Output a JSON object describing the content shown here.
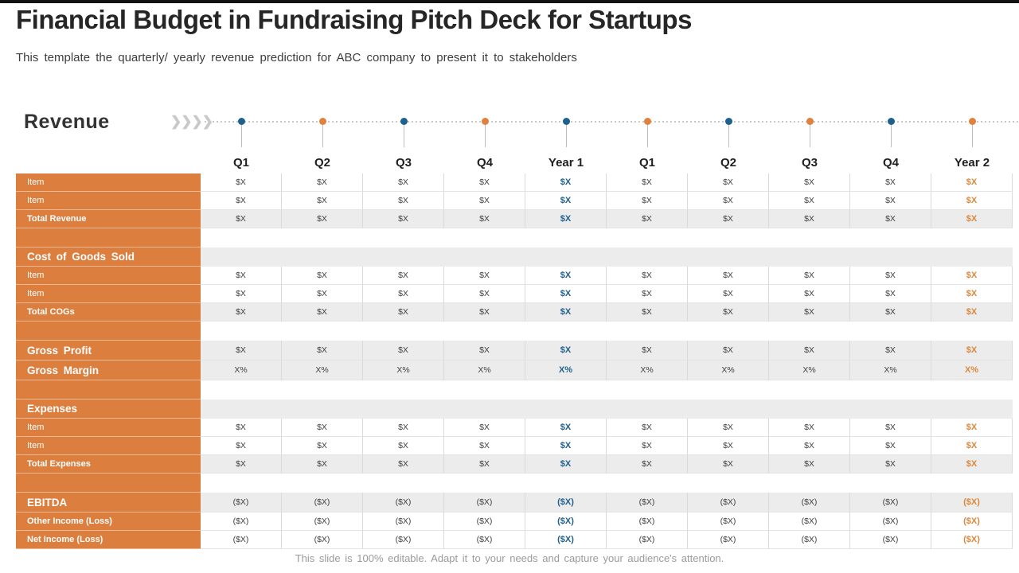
{
  "slide": {
    "title": "Financial Budget in Fundraising Pitch Deck for Startups",
    "subtitle": "This template the quarterly/ yearly revenue prediction for ABC company to present it to stakeholders",
    "footer": "This slide is 100% editable. Adapt it to your needs and capture your audience's attention."
  },
  "icons": {
    "chevrons_right": "❯❯❯❯"
  },
  "colors": {
    "accent_orange": "#DC7E3E",
    "dot_orange": "#E0813E",
    "dot_blue": "#1F618D",
    "year1_text": "#1F618D",
    "year2_text": "#DC883C",
    "row_alt_bg": "#ECECEC"
  },
  "revenue_section": {
    "heading": "Revenue"
  },
  "timeline": {
    "dot_colors": [
      "blue",
      "orange",
      "blue",
      "orange",
      "blue",
      "orange",
      "blue",
      "orange",
      "blue",
      "orange"
    ]
  },
  "table": {
    "columns": [
      "Q1",
      "Q2",
      "Q3",
      "Q4",
      "Year 1",
      "Q1",
      "Q2",
      "Q3",
      "Q4",
      "Year 2"
    ],
    "year1_col_index": 4,
    "year2_col_index": 9,
    "rows": [
      {
        "label": "Item",
        "type": "item",
        "bg": "white",
        "values": [
          "$X",
          "$X",
          "$X",
          "$X",
          "$X",
          "$X",
          "$X",
          "$X",
          "$X",
          "$X"
        ]
      },
      {
        "label": "Item",
        "type": "item",
        "bg": "white",
        "values": [
          "$X",
          "$X",
          "$X",
          "$X",
          "$X",
          "$X",
          "$X",
          "$X",
          "$X",
          "$X"
        ]
      },
      {
        "label": "Total Revenue",
        "type": "total",
        "bg": "gray",
        "values": [
          "$X",
          "$X",
          "$X",
          "$X",
          "$X",
          "$X",
          "$X",
          "$X",
          "$X",
          "$X"
        ]
      },
      {
        "label": "",
        "type": "spacer",
        "bg": "white",
        "values": []
      },
      {
        "label": "Cost of Goods Sold",
        "type": "section",
        "bg": "gray",
        "values": []
      },
      {
        "label": "Item",
        "type": "item",
        "bg": "white",
        "values": [
          "$X",
          "$X",
          "$X",
          "$X",
          "$X",
          "$X",
          "$X",
          "$X",
          "$X",
          "$X"
        ]
      },
      {
        "label": "Item",
        "type": "item",
        "bg": "white",
        "values": [
          "$X",
          "$X",
          "$X",
          "$X",
          "$X",
          "$X",
          "$X",
          "$X",
          "$X",
          "$X"
        ]
      },
      {
        "label": "Total COGs",
        "type": "total",
        "bg": "gray",
        "values": [
          "$X",
          "$X",
          "$X",
          "$X",
          "$X",
          "$X",
          "$X",
          "$X",
          "$X",
          "$X"
        ]
      },
      {
        "label": "",
        "type": "spacer",
        "bg": "white",
        "values": []
      },
      {
        "label": "Gross Profit",
        "type": "bold",
        "bg": "gray",
        "values": [
          "$X",
          "$X",
          "$X",
          "$X",
          "$X",
          "$X",
          "$X",
          "$X",
          "$X",
          "$X"
        ]
      },
      {
        "label": "Gross Margin",
        "type": "bold",
        "bg": "gray",
        "values": [
          "X%",
          "X%",
          "X%",
          "X%",
          "X%",
          "X%",
          "X%",
          "X%",
          "X%",
          "X%"
        ]
      },
      {
        "label": "",
        "type": "spacer",
        "bg": "white",
        "values": []
      },
      {
        "label": "Expenses",
        "type": "section",
        "bg": "gray",
        "values": []
      },
      {
        "label": "Item",
        "type": "item",
        "bg": "white",
        "values": [
          "$X",
          "$X",
          "$X",
          "$X",
          "$X",
          "$X",
          "$X",
          "$X",
          "$X",
          "$X"
        ]
      },
      {
        "label": "Item",
        "type": "item",
        "bg": "white",
        "values": [
          "$X",
          "$X",
          "$X",
          "$X",
          "$X",
          "$X",
          "$X",
          "$X",
          "$X",
          "$X"
        ]
      },
      {
        "label": "Total Expenses",
        "type": "total",
        "bg": "gray",
        "values": [
          "$X",
          "$X",
          "$X",
          "$X",
          "$X",
          "$X",
          "$X",
          "$X",
          "$X",
          "$X"
        ]
      },
      {
        "label": "",
        "type": "spacer",
        "bg": "white",
        "values": []
      },
      {
        "label": "EBITDA",
        "type": "bold",
        "bg": "gray",
        "values": [
          "($X)",
          "($X)",
          "($X)",
          "($X)",
          "($X)",
          "($X)",
          "($X)",
          "($X)",
          "($X)",
          "($X)"
        ]
      },
      {
        "label": "Other Income (Loss)",
        "type": "total",
        "bg": "white",
        "values": [
          "($X)",
          "($X)",
          "($X)",
          "($X)",
          "($X)",
          "($X)",
          "($X)",
          "($X)",
          "($X)",
          "($X)"
        ]
      },
      {
        "label": "Net Income (Loss)",
        "type": "total",
        "bg": "white",
        "values": [
          "($X)",
          "($X)",
          "($X)",
          "($X)",
          "($X)",
          "($X)",
          "($X)",
          "($X)",
          "($X)",
          "($X)"
        ]
      }
    ]
  }
}
